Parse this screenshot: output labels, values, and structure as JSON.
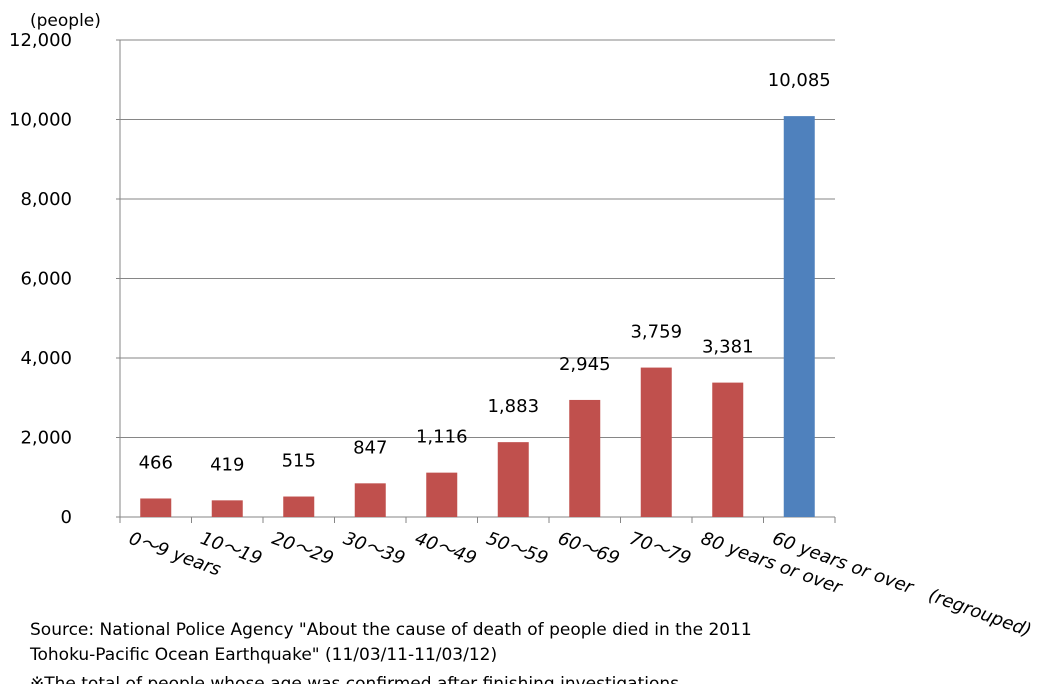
{
  "chart_data": {
    "type": "bar",
    "y_unit_label": "(people)",
    "categories": [
      "0〜9 years",
      "10〜19",
      "20〜29",
      "30〜39",
      "40〜49",
      "50〜59",
      "60〜69",
      "70〜79",
      "80 years or over",
      "60 years or over　(regrouped)"
    ],
    "values": [
      466,
      419,
      515,
      847,
      1116,
      1883,
      2945,
      3759,
      3381,
      10085
    ],
    "data_labels": [
      "466",
      "419",
      "515",
      "847",
      "1,116",
      "1,883",
      "2,945",
      "3,759",
      "3,381",
      "10,085"
    ],
    "y_ticks": [
      "0",
      "2,000",
      "4,000",
      "6,000",
      "8,000",
      "10,000",
      "12,000"
    ],
    "ylim": [
      0,
      12000
    ],
    "bar_colors": [
      "#c0504d",
      "#c0504d",
      "#c0504d",
      "#c0504d",
      "#c0504d",
      "#c0504d",
      "#c0504d",
      "#c0504d",
      "#c0504d",
      "#4f81bd"
    ],
    "grid": true
  },
  "source": {
    "line1": "Source: National Police Agency \"About the cause of death of people died in the 2011",
    "line2": "Tohoku-Pacific Ocean Earthquake\" (11/03/11-11/03/12)",
    "line3": "※The total of people whose age was confirmed after finishing investigations"
  }
}
